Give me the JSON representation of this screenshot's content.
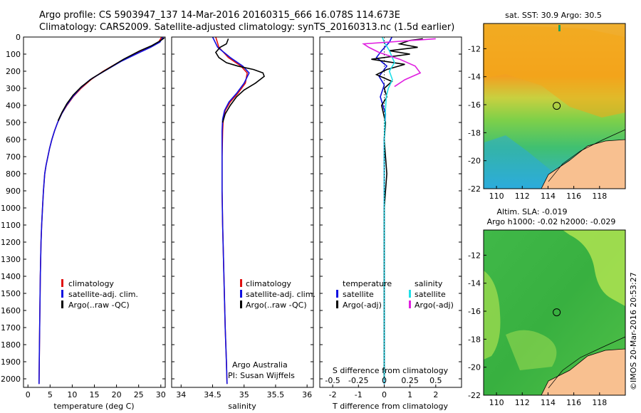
{
  "header": {
    "line1": "Argo profile: CS 5903947_137 14-Mar-2016 20160315_666 16.078S 114.673E",
    "line2": "Climatology: CARS2009. Satellite-adjusted climatology: synTS_20160313.nc (1.5d earlier)"
  },
  "colors": {
    "climatology": "#e01010",
    "satellite_adj": "#1010e0",
    "argo": "#000000",
    "sat_salinity": "#20e0e8",
    "argo_salinity": "#e020e0",
    "land": "#f8c090"
  },
  "chart_data": [
    {
      "type": "line",
      "panel": "temperature",
      "xlabel": "temperature (deg C)",
      "ylabel": "",
      "xlim": [
        -1,
        31
      ],
      "ylim": [
        2050,
        0
      ],
      "x_ticks": [
        "0",
        "5",
        "10",
        "15",
        "20",
        "25",
        "30"
      ],
      "x_tick_values": [
        0,
        5,
        10,
        15,
        20,
        25,
        30
      ],
      "y_ticks": [
        "0",
        "100",
        "200",
        "300",
        "400",
        "500",
        "600",
        "700",
        "800",
        "900",
        "1000",
        "1100",
        "1200",
        "1300",
        "1400",
        "1500",
        "1600",
        "1700",
        "1800",
        "1900",
        "2000"
      ],
      "y_tick_values": [
        0,
        100,
        200,
        300,
        400,
        500,
        600,
        700,
        800,
        900,
        1000,
        1100,
        1200,
        1300,
        1400,
        1500,
        1600,
        1700,
        1800,
        1900,
        2000
      ],
      "legend": [
        "climatology",
        "satellite-adj. clim.",
        "Argo(..raw -QC)"
      ],
      "series": [
        {
          "name": "climatology",
          "color": "#e01010",
          "x": [
            30.2,
            29.5,
            27.5,
            25,
            21,
            17,
            14.2,
            12,
            10.2,
            8.8,
            7.6,
            6.7,
            6.0,
            5.4,
            4.9,
            4.5,
            4.1,
            3.8,
            3.5,
            3.3,
            3.1,
            2.95,
            2.8,
            2.7,
            2.6,
            2.5
          ],
          "y": [
            0,
            30,
            60,
            90,
            140,
            200,
            250,
            300,
            350,
            400,
            450,
            500,
            550,
            600,
            650,
            700,
            750,
            800,
            900,
            1000,
            1100,
            1200,
            1400,
            1600,
            1800,
            2030
          ]
        },
        {
          "name": "satellite-adj. clim.",
          "color": "#1010e0",
          "x": [
            30.5,
            29.8,
            27.7,
            25.2,
            21.2,
            17.2,
            14.0,
            11.8,
            10.1,
            8.7,
            7.6,
            6.7,
            6.0,
            5.4,
            4.9,
            4.5,
            4.1,
            3.8,
            3.5,
            3.3,
            3.1,
            2.95,
            2.8,
            2.7,
            2.6,
            2.5
          ],
          "y": [
            0,
            30,
            60,
            90,
            140,
            200,
            250,
            300,
            350,
            400,
            450,
            500,
            550,
            600,
            650,
            700,
            750,
            800,
            900,
            1000,
            1100,
            1200,
            1400,
            1600,
            1800,
            2030
          ]
        },
        {
          "name": "Argo(..raw -QC)",
          "color": "#000000",
          "x": [
            30.8,
            30.0,
            28.0,
            25.3,
            21.6,
            17.8,
            14.6,
            12.1,
            10.2,
            8.8,
            7.7,
            6.8
          ],
          "y": [
            5,
            20,
            50,
            80,
            130,
            190,
            240,
            290,
            340,
            390,
            440,
            490
          ]
        }
      ]
    },
    {
      "type": "line",
      "panel": "salinity",
      "xlabel": "salinity",
      "ylabel": "",
      "xlim": [
        33.85,
        36.1
      ],
      "ylim": [
        2050,
        0
      ],
      "x_ticks": [
        "34",
        "34.5",
        "35",
        "35.5",
        "36"
      ],
      "x_tick_values": [
        34,
        34.5,
        35,
        35.5,
        36
      ],
      "legend": [
        "climatology",
        "satellite-adj. clim.",
        "Argo(..raw -QC)"
      ],
      "annotation": [
        "Argo Australia",
        "PI: Susan Wijffels"
      ],
      "series": [
        {
          "name": "climatology",
          "color": "#e01010",
          "x": [
            34.55,
            34.6,
            34.75,
            34.95,
            35.05,
            35.02,
            34.9,
            34.78,
            34.7,
            34.67,
            34.66,
            34.65,
            34.65,
            34.66,
            34.68,
            34.7,
            34.72,
            34.73
          ],
          "y": [
            0,
            60,
            120,
            170,
            210,
            270,
            330,
            380,
            430,
            480,
            550,
            700,
            900,
            1100,
            1400,
            1700,
            1900,
            2030
          ]
        },
        {
          "name": "satellite-adj. clim.",
          "color": "#1010e0",
          "x": [
            34.5,
            34.58,
            34.78,
            34.98,
            35.08,
            35.0,
            34.88,
            34.76,
            34.69,
            34.66,
            34.65,
            34.65,
            34.65,
            34.66,
            34.68,
            34.7,
            34.72,
            34.73
          ],
          "y": [
            0,
            60,
            120,
            170,
            210,
            270,
            330,
            380,
            430,
            480,
            550,
            700,
            900,
            1100,
            1400,
            1700,
            1900,
            2030
          ]
        },
        {
          "name": "Argo(..raw -QC)",
          "color": "#000000",
          "x": [
            34.75,
            34.72,
            34.62,
            34.55,
            34.6,
            34.72,
            34.9,
            35.15,
            35.3,
            35.32,
            35.18,
            35.0,
            34.88,
            34.78,
            34.7,
            34.66
          ],
          "y": [
            10,
            40,
            60,
            90,
            120,
            150,
            170,
            190,
            210,
            230,
            270,
            310,
            350,
            400,
            450,
            500
          ]
        }
      ]
    },
    {
      "type": "line",
      "panel": "difference",
      "xlabel": "T difference from climatology",
      "x2label": "S difference from climatology",
      "xlim": [
        -2.5,
        3
      ],
      "x2lim": [
        -0.625,
        0.75
      ],
      "ylim": [
        2050,
        0
      ],
      "x_ticks": [
        "-2",
        "-1",
        "0",
        "1",
        "2"
      ],
      "x_tick_values": [
        -2,
        -1,
        0,
        1,
        2
      ],
      "x2_ticks": [
        "-0.5",
        "-0.25",
        "0",
        "0.25",
        "0.5"
      ],
      "x2_tick_values": [
        -0.5,
        -0.25,
        0,
        0.25,
        0.5
      ],
      "legend_groups": [
        {
          "title": "temperature",
          "items": [
            "satellite",
            "Argo(-adj)"
          ]
        },
        {
          "title": "salinity",
          "items": [
            "satellite",
            "Argo(-adj)"
          ]
        }
      ],
      "series": [
        {
          "name": "temperature satellite",
          "color": "#1010e0",
          "x": [
            0.3,
            0.2,
            -0.1,
            -0.3,
            0.1,
            -0.2,
            0,
            -0.15,
            0.05,
            0,
            0,
            0,
            0
          ],
          "y": [
            0,
            30,
            80,
            120,
            170,
            230,
            280,
            350,
            450,
            600,
            1000,
            1500,
            2030
          ]
        },
        {
          "name": "temperature Argo(-adj)",
          "color": "#000000",
          "x": [
            1.5,
            1.0,
            0.6,
            1.3,
            0.2,
            1.0,
            -0.5,
            0.8,
            0.1,
            -0.3,
            0.3,
            0,
            0.1,
            -0.1,
            0.05,
            0,
            0.1,
            0,
            0,
            0,
            0
          ],
          "y": [
            10,
            20,
            40,
            60,
            80,
            100,
            130,
            160,
            190,
            220,
            260,
            300,
            350,
            400,
            500,
            600,
            800,
            1000,
            1300,
            1600,
            2000
          ]
        },
        {
          "name": "salinity satellite",
          "color": "#20e0e8",
          "x": [
            -0.02,
            0.0,
            0.05,
            0.1,
            0.05,
            0.08,
            0.04,
            0.02,
            0.01,
            0,
            0,
            0,
            0
          ],
          "y": [
            0,
            30,
            80,
            150,
            200,
            250,
            300,
            350,
            450,
            600,
            1000,
            1500,
            2030
          ]
        },
        {
          "name": "salinity Argo(-adj)",
          "color": "#e020e0",
          "x": [
            0.5,
            -0.2,
            -0.15,
            -0.05,
            0.15,
            0.3,
            0.35,
            0.2,
            0.1
          ],
          "y": [
            10,
            40,
            60,
            90,
            130,
            170,
            210,
            250,
            290
          ]
        }
      ]
    },
    {
      "type": "heatmap",
      "panel": "sst-map",
      "title": "sat. SST: 30.9  Argo: 30.5",
      "xlim": [
        109,
        120
      ],
      "ylim": [
        -22,
        -10.2
      ],
      "x_ticks": [
        "110",
        "112",
        "114",
        "116",
        "118"
      ],
      "x_tick_values": [
        110,
        112,
        114,
        116,
        118
      ],
      "y_ticks": [
        "-12",
        "-14",
        "-16",
        "-18",
        "-20",
        "-22"
      ],
      "y_tick_values": [
        -12,
        -14,
        -16,
        -18,
        -20,
        -22
      ],
      "marker": {
        "lon": 114.673,
        "lat": -16.078
      }
    },
    {
      "type": "heatmap",
      "panel": "sla-map",
      "title": "Altim. SLA: -0.019",
      "subtitle": "Argo h1000: -0.02  h2000: -0.029",
      "xlim": [
        109,
        120
      ],
      "ylim": [
        -22,
        -10.2
      ],
      "x_ticks": [
        "110",
        "112",
        "114",
        "116",
        "118"
      ],
      "x_tick_values": [
        110,
        112,
        114,
        116,
        118
      ],
      "y_ticks": [
        "-12",
        "-14",
        "-16",
        "-18",
        "-20",
        "-22"
      ],
      "y_tick_values": [
        -12,
        -14,
        -16,
        -18,
        -20,
        -22
      ],
      "marker": {
        "lon": 114.673,
        "lat": -16.078
      }
    }
  ],
  "credit": "©IMOS 20-Mar-2016 20:53:27"
}
